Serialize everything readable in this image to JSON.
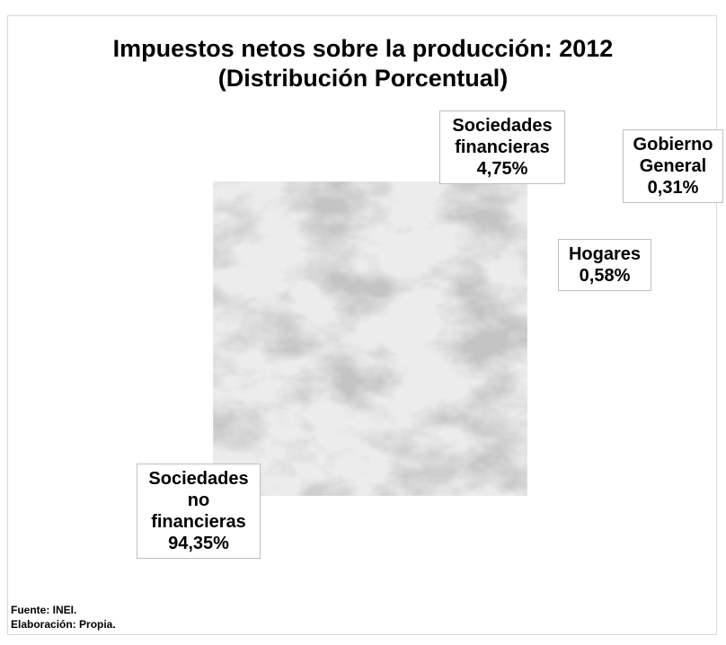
{
  "chart_data": {
    "type": "pie",
    "title": "Impuestos netos sobre la producción: 2012",
    "subtitle": "(Distribución Porcentual)",
    "slices": [
      {
        "label_lines": [
          "Sociedades",
          "no",
          "financieras"
        ],
        "value_label": "94,35%",
        "value": 94.35,
        "color": "#e6e6e6"
      },
      {
        "label_lines": [
          "Sociedades",
          "financieras"
        ],
        "value_label": "4,75%",
        "value": 4.75,
        "color": "#000000"
      },
      {
        "label_lines": [
          "Gobierno",
          "General"
        ],
        "value_label": "0,31%",
        "value": 0.31,
        "color": "#ffffff"
      },
      {
        "label_lines": [
          "Hogares"
        ],
        "value_label": "0,58%",
        "value": 0.58,
        "color": "#ffffff"
      }
    ]
  },
  "footer": {
    "source": "Fuente: INEI.",
    "elaboration": "Elaboración: Propia."
  }
}
